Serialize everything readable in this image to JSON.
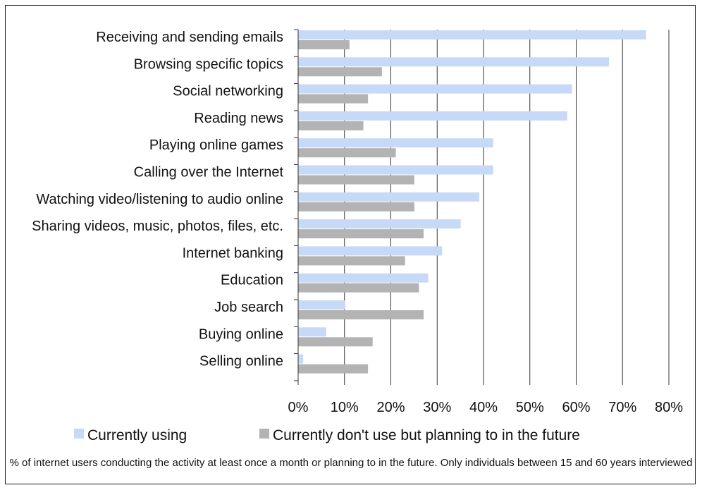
{
  "chart_data": {
    "type": "bar",
    "orientation": "horizontal",
    "categories": [
      "Receiving and sending emails",
      "Browsing specific topics",
      "Social networking",
      "Reading news",
      "Playing online games",
      "Calling over the Internet",
      "Watching video/listening to audio online",
      "Sharing videos, music, photos, files, etc.",
      "Internet banking",
      "Education",
      "Job search",
      "Buying online",
      "Selling online"
    ],
    "series": [
      {
        "name": "Currently using",
        "color": "#c6d9f7",
        "values": [
          75,
          67,
          59,
          58,
          42,
          42,
          39,
          35,
          31,
          28,
          10,
          6,
          1
        ]
      },
      {
        "name": "Currently don't use but planning to in the future",
        "color": "#b3b3b3",
        "values": [
          11,
          18,
          15,
          14,
          21,
          25,
          25,
          27,
          23,
          26,
          27,
          16,
          15
        ]
      }
    ],
    "x_ticks": [
      "0%",
      "10%",
      "20%",
      "30%",
      "40%",
      "50%",
      "60%",
      "70%",
      "80%"
    ],
    "xlim": [
      0,
      80
    ],
    "grid": true,
    "legend_position": "bottom",
    "footnote": "% of internet users conducting the activity at least once a month or planning to in the future. Only individuals between 15 and 60 years interviewed"
  }
}
